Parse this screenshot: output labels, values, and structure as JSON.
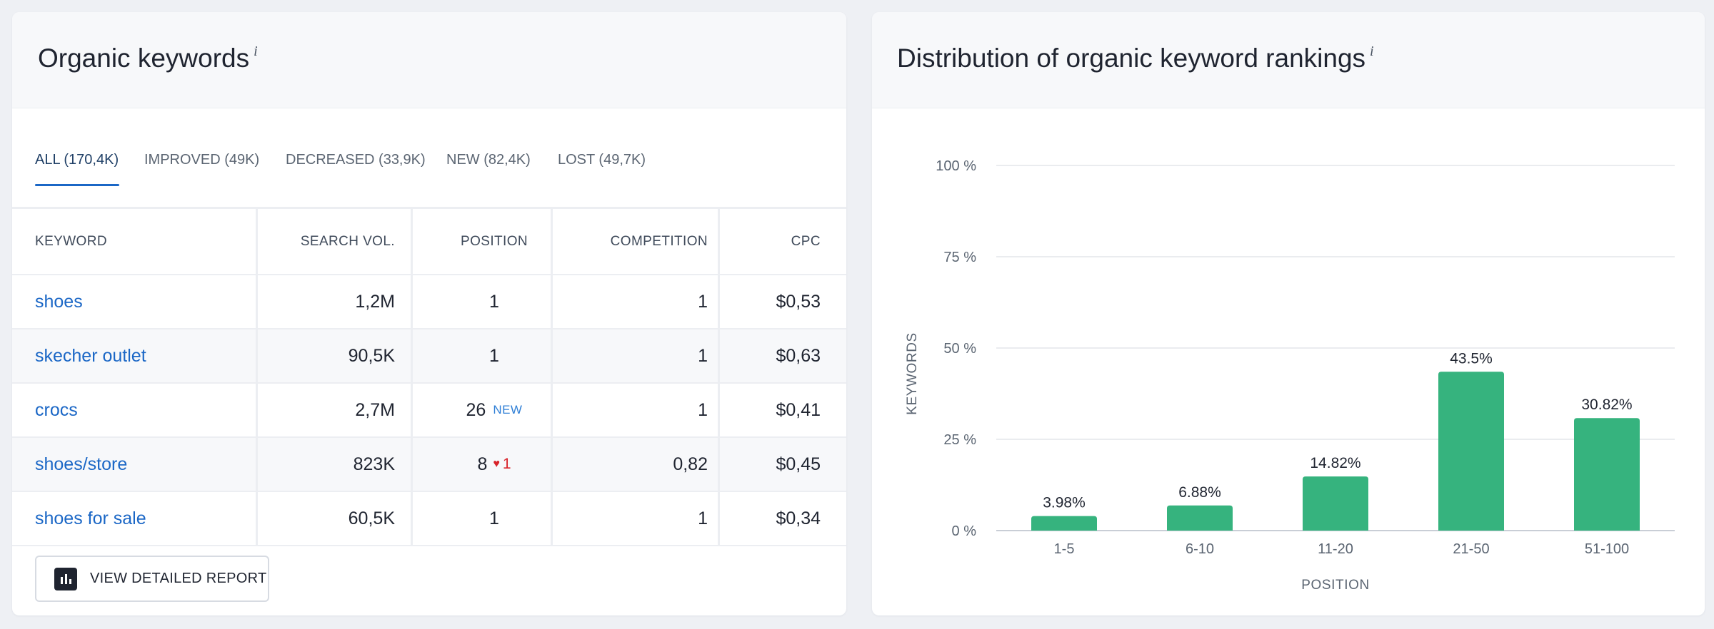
{
  "left_panel": {
    "title": "Organic keywords",
    "info": "i",
    "tabs": [
      {
        "label": "ALL (170,4K)",
        "active": true
      },
      {
        "label": "IMPROVED (49K)",
        "active": false
      },
      {
        "label": "DECREASED (33,9K)",
        "active": false
      },
      {
        "label": "NEW (82,4K)",
        "active": false
      },
      {
        "label": "LOST (49,7K)",
        "active": false
      }
    ],
    "table": {
      "headers": {
        "keyword": "KEYWORD",
        "search_vol": "SEARCH VOL.",
        "position": "POSITION",
        "competition": "COMPETITION",
        "cpc": "CPC"
      },
      "rows": [
        {
          "keyword": "shoes",
          "search_vol": "1,2M",
          "position": "1",
          "badge": "",
          "change": "",
          "competition": "1",
          "cpc": "$0,53"
        },
        {
          "keyword": "skecher outlet",
          "search_vol": "90,5K",
          "position": "1",
          "badge": "",
          "change": "",
          "competition": "1",
          "cpc": "$0,63"
        },
        {
          "keyword": "crocs",
          "search_vol": "2,7M",
          "position": "26",
          "badge": "NEW",
          "change": "",
          "competition": "1",
          "cpc": "$0,41"
        },
        {
          "keyword": "shoes/store",
          "search_vol": "823K",
          "position": "8",
          "badge": "",
          "change": "1",
          "competition": "0,82",
          "cpc": "$0,45"
        },
        {
          "keyword": "shoes for sale",
          "search_vol": "60,5K",
          "position": "1",
          "badge": "",
          "change": "",
          "competition": "1",
          "cpc": "$0,34"
        }
      ]
    },
    "button_label": "VIEW DETAILED REPORT",
    "button_icon": "bar-chart-icon",
    "change_icon": "heart-down-icon"
  },
  "right_panel": {
    "title": "Distribution of organic keyword rankings",
    "info": "i"
  },
  "colors": {
    "bar": "#36b37e",
    "link": "#1b67c6",
    "negative": "#d8232a"
  },
  "chart_data": {
    "type": "bar",
    "categories": [
      "1-5",
      "6-10",
      "11-20",
      "21-50",
      "51-100"
    ],
    "values": [
      3.98,
      6.88,
      14.82,
      43.5,
      30.82
    ],
    "value_labels": [
      "3.98%",
      "6.88%",
      "14.82%",
      "43.5%",
      "30.82%"
    ],
    "y_ticks": [
      "0 %",
      "25 %",
      "50 %",
      "75 %",
      "100 %"
    ],
    "ylim": [
      0,
      100
    ],
    "xlabel": "POSITION",
    "ylabel": "KEYWORDS",
    "grid": true,
    "legend": "none"
  }
}
